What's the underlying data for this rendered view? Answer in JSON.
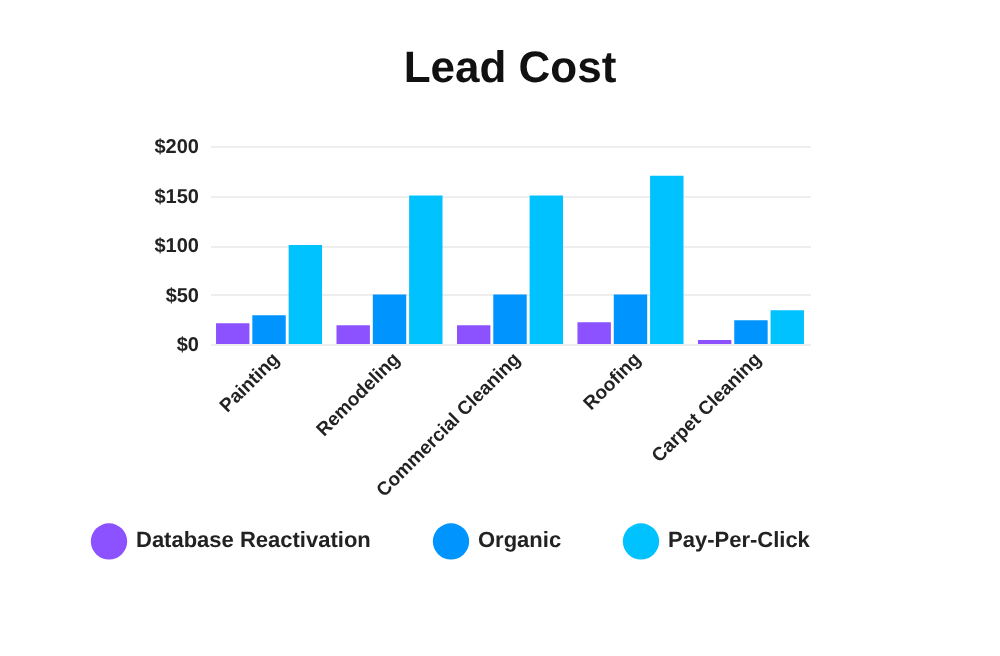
{
  "chart_data": {
    "type": "bar",
    "title": "Lead Cost",
    "categories": [
      "Painting",
      "Remodeling",
      "Commercial Cleaning",
      "Roofing",
      "Carpet Cleaning"
    ],
    "series": [
      {
        "name": "Database Reactivation",
        "color": "#8c52ff",
        "values": [
          21,
          19,
          19,
          22,
          4
        ]
      },
      {
        "name": "Organic",
        "color": "#0094ff",
        "values": [
          29,
          50,
          50,
          50,
          24
        ]
      },
      {
        "name": "Pay-Per-Click",
        "color": "#00c2ff",
        "values": [
          100,
          150,
          150,
          170,
          34
        ]
      }
    ],
    "ylim": [
      0,
      200
    ],
    "yticks": [
      {
        "value": 0,
        "label": "$0"
      },
      {
        "value": 50,
        "label": "$50"
      },
      {
        "value": 100,
        "label": "$100"
      },
      {
        "value": 150,
        "label": "$150"
      },
      {
        "value": 200,
        "label": "$200"
      }
    ],
    "grid": "y",
    "legend": "bottom"
  }
}
